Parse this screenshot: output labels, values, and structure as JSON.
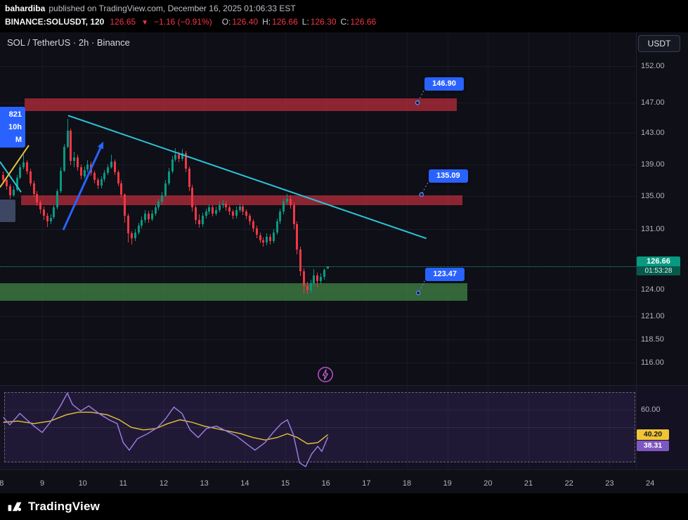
{
  "colors": {
    "up": "#089981",
    "down": "#f23645",
    "cyan": "#2bc4d9",
    "yellow": "#e5c33a",
    "blue": "#2962ff",
    "purple": "#9f7fe8",
    "resistance": "rgba(201,48,62,0.68)",
    "support": "rgba(76,160,80,0.60)",
    "label_blue": "#2962ff",
    "current": "#089981"
  },
  "header": {
    "author": "bahardiba",
    "published": "published on TradingView.com, December 16, 2025 01:06:33 EST",
    "symbol": "BINANCE:SOLUSDT, 120",
    "last_price": "126.65",
    "direction": "▼",
    "change": "−1.16 (−0.91%)",
    "ohlc": [
      {
        "label": "O:",
        "value": "126.40"
      },
      {
        "label": "H:",
        "value": "126.66"
      },
      {
        "label": "L:",
        "value": "126.30"
      },
      {
        "label": "C:",
        "value": "126.66"
      }
    ]
  },
  "chart": {
    "title": "SOL / TetherUS · 2h · Binance",
    "currency_button": "USDT",
    "left_label_lines": [
      "821",
      "10h",
      "M"
    ],
    "y_ticks": [
      {
        "value": 152,
        "label": "152.00"
      },
      {
        "value": 147,
        "label": "147.00"
      },
      {
        "value": 143,
        "label": "143.00"
      },
      {
        "value": 139,
        "label": "139.00"
      },
      {
        "value": 135,
        "label": "135.00"
      },
      {
        "value": 131,
        "label": "131.00"
      },
      {
        "value": 124,
        "label": "124.00"
      },
      {
        "value": 121,
        "label": "121.00"
      },
      {
        "value": 118.5,
        "label": "118.50"
      },
      {
        "value": 116,
        "label": "116.00"
      }
    ],
    "x_ticks": [
      8,
      9,
      10,
      11,
      12,
      13,
      14,
      15,
      16,
      17,
      18,
      19,
      20,
      21,
      22,
      23,
      24
    ],
    "current_price": {
      "price": "126.66",
      "countdown": "01:53:28"
    }
  },
  "indicator": {
    "gridline_label": "60.00",
    "yellow_value": "40.20",
    "purple_value": "38.31"
  },
  "footer": {
    "brand": "TradingView"
  },
  "chart_data": {
    "type": "candlestick",
    "interval": "2h",
    "x_unit": "day of December 2025",
    "visible_day_range": [
      8,
      24
    ],
    "y_scale": "log",
    "y_ticks": [
      152,
      147,
      143,
      139,
      135,
      131,
      124,
      121,
      118.5,
      116
    ],
    "current_price": 126.66,
    "current_bar": {
      "open": 126.4,
      "high": 126.66,
      "low": 126.3,
      "close": 126.66
    },
    "candles": [
      [
        137.6,
        138.1,
        136.6,
        137.0
      ],
      [
        137.0,
        137.4,
        135.8,
        136.2
      ],
      [
        136.2,
        136.5,
        134.7,
        135.1
      ],
      [
        135.1,
        136.2,
        134.9,
        135.8
      ],
      [
        135.8,
        137.6,
        135.6,
        137.3
      ],
      [
        137.3,
        139.0,
        137.1,
        138.6
      ],
      [
        138.6,
        140.2,
        138.3,
        139.2
      ],
      [
        139.2,
        139.5,
        137.7,
        138.1
      ],
      [
        138.1,
        138.4,
        136.2,
        136.6
      ],
      [
        136.6,
        136.9,
        134.9,
        135.3
      ],
      [
        135.3,
        135.6,
        133.8,
        134.2
      ],
      [
        134.2,
        134.5,
        132.9,
        133.4
      ],
      [
        133.4,
        133.7,
        132.1,
        132.6
      ],
      [
        132.6,
        133.0,
        131.3,
        131.9
      ],
      [
        131.9,
        132.8,
        131.6,
        132.4
      ],
      [
        132.4,
        133.9,
        132.2,
        133.6
      ],
      [
        133.6,
        135.9,
        133.4,
        135.6
      ],
      [
        135.6,
        138.6,
        135.4,
        138.2
      ],
      [
        138.2,
        141.6,
        138.0,
        141.2
      ],
      [
        141.2,
        144.9,
        141.0,
        143.3
      ],
      [
        143.3,
        143.6,
        138.9,
        139.4
      ],
      [
        139.4,
        140.6,
        138.6,
        139.9
      ],
      [
        139.9,
        140.2,
        138.2,
        138.6
      ],
      [
        138.6,
        139.0,
        137.1,
        137.5
      ],
      [
        137.5,
        138.7,
        137.2,
        138.3
      ],
      [
        138.3,
        139.5,
        138.0,
        139.0
      ],
      [
        139.0,
        139.3,
        137.5,
        137.9
      ],
      [
        137.9,
        138.2,
        136.6,
        137.0
      ],
      [
        137.0,
        137.3,
        135.9,
        136.3
      ],
      [
        136.3,
        137.5,
        136.0,
        137.1
      ],
      [
        137.1,
        138.3,
        136.8,
        137.9
      ],
      [
        137.9,
        139.0,
        137.6,
        138.6
      ],
      [
        138.6,
        140.2,
        138.4,
        139.3
      ],
      [
        139.3,
        139.6,
        137.6,
        138.0
      ],
      [
        138.0,
        138.3,
        136.2,
        136.6
      ],
      [
        136.6,
        136.9,
        134.8,
        135.2
      ],
      [
        135.2,
        135.4,
        131.8,
        132.6
      ],
      [
        132.6,
        132.9,
        129.4,
        130.5
      ],
      [
        130.5,
        130.8,
        129.2,
        129.9
      ],
      [
        129.9,
        131.0,
        129.6,
        130.6
      ],
      [
        130.6,
        131.8,
        130.3,
        131.4
      ],
      [
        131.4,
        132.5,
        131.1,
        132.1
      ],
      [
        132.1,
        133.3,
        131.8,
        132.9
      ],
      [
        132.9,
        133.2,
        131.8,
        132.2
      ],
      [
        132.2,
        133.3,
        131.9,
        132.9
      ],
      [
        132.9,
        134.0,
        132.6,
        133.6
      ],
      [
        133.6,
        134.7,
        133.3,
        134.3
      ],
      [
        134.3,
        135.5,
        134.0,
        135.1
      ],
      [
        135.1,
        137.0,
        134.9,
        136.6
      ],
      [
        136.6,
        138.5,
        136.3,
        138.1
      ],
      [
        138.1,
        140.0,
        137.8,
        139.6
      ],
      [
        139.6,
        141.0,
        139.3,
        140.2
      ],
      [
        140.2,
        140.6,
        139.2,
        139.7
      ],
      [
        139.7,
        140.9,
        139.4,
        140.4
      ],
      [
        140.4,
        140.7,
        138.0,
        138.4
      ],
      [
        138.4,
        138.7,
        135.6,
        136.1
      ],
      [
        136.1,
        136.4,
        133.1,
        133.6
      ],
      [
        133.6,
        133.9,
        131.6,
        132.1
      ],
      [
        132.1,
        132.8,
        131.2,
        131.6
      ],
      [
        131.6,
        133.0,
        131.3,
        132.6
      ],
      [
        132.6,
        133.5,
        132.3,
        133.1
      ],
      [
        133.1,
        134.0,
        132.8,
        133.6
      ],
      [
        133.6,
        133.9,
        132.5,
        132.9
      ],
      [
        132.9,
        133.7,
        132.6,
        133.3
      ],
      [
        133.3,
        134.3,
        133.0,
        133.9
      ],
      [
        133.9,
        134.5,
        133.6,
        134.1
      ],
      [
        134.1,
        134.4,
        133.2,
        133.6
      ],
      [
        133.6,
        133.9,
        132.7,
        133.1
      ],
      [
        133.1,
        133.4,
        132.2,
        132.6
      ],
      [
        132.6,
        133.7,
        132.3,
        133.3
      ],
      [
        133.3,
        134.1,
        133.0,
        133.7
      ],
      [
        133.7,
        134.0,
        132.7,
        133.1
      ],
      [
        133.1,
        133.4,
        132.2,
        132.6
      ],
      [
        132.6,
        132.9,
        131.5,
        131.9
      ],
      [
        131.9,
        132.2,
        130.7,
        131.1
      ],
      [
        131.1,
        131.4,
        129.9,
        130.3
      ],
      [
        130.3,
        130.6,
        129.3,
        129.7
      ],
      [
        129.7,
        130.0,
        128.9,
        129.4
      ],
      [
        129.4,
        130.5,
        129.1,
        130.1
      ],
      [
        130.1,
        130.4,
        129.2,
        129.6
      ],
      [
        129.6,
        131.0,
        129.3,
        130.6
      ],
      [
        130.6,
        132.3,
        130.3,
        131.9
      ],
      [
        131.9,
        133.5,
        131.6,
        133.1
      ],
      [
        133.1,
        134.7,
        132.8,
        134.3
      ],
      [
        134.3,
        135.3,
        134.0,
        134.7
      ],
      [
        134.7,
        135.1,
        133.5,
        133.9
      ],
      [
        133.9,
        134.2,
        131.0,
        131.6
      ],
      [
        131.6,
        131.9,
        128.0,
        128.6
      ],
      [
        128.6,
        128.9,
        125.5,
        126.1
      ],
      [
        126.1,
        126.4,
        123.5,
        124.4
      ],
      [
        124.4,
        124.9,
        123.4,
        123.9
      ],
      [
        123.9,
        125.1,
        123.6,
        124.7
      ],
      [
        124.7,
        126.3,
        124.4,
        125.6
      ],
      [
        125.6,
        125.9,
        124.2,
        124.9
      ],
      [
        124.9,
        125.8,
        124.6,
        125.4
      ],
      [
        125.4,
        126.4,
        125.1,
        126.2
      ],
      [
        126.4,
        126.66,
        126.3,
        126.66
      ]
    ],
    "zones": [
      {
        "kind": "resistance",
        "day_from": 8.57,
        "day_to": 19.23,
        "price_from": 145.9,
        "price_to": 147.6
      },
      {
        "kind": "resistance",
        "day_from": 8.48,
        "day_to": 19.37,
        "price_from": 133.9,
        "price_to": 135.1
      },
      {
        "kind": "support",
        "day_from": 7.96,
        "day_to": 19.49,
        "price_from": 122.7,
        "price_to": 124.7
      }
    ],
    "price_markers": [
      {
        "label": "146.90",
        "day": 18.26,
        "price": 147.0
      },
      {
        "label": "135.09",
        "day": 18.36,
        "price": 135.2
      },
      {
        "label": "123.47",
        "day": 18.28,
        "price": 123.6
      }
    ],
    "trend_lines": [
      {
        "from": [
          9.64,
          145.3
        ],
        "to": [
          18.48,
          129.9
        ],
        "color": "cyan",
        "width": 2
      },
      {
        "from": [
          7.96,
          139.3
        ],
        "to": [
          8.48,
          135.5
        ],
        "color": "cyan",
        "width": 2
      },
      {
        "from": [
          7.96,
          136.1
        ],
        "to": [
          8.67,
          141.4
        ],
        "color": "yellow",
        "width": 2
      }
    ],
    "arrow": {
      "from": [
        9.52,
        130.9
      ],
      "to": [
        10.51,
        141.9
      ],
      "color": "blue",
      "width": 3
    },
    "indicator": {
      "type": "oscillator",
      "upper_band": 74,
      "lower_band": 18,
      "mid": 46,
      "grid": 60,
      "purple_last": 38.31,
      "yellow_last": 40.2,
      "purple_series": [
        [
          8.04,
          54
        ],
        [
          8.2,
          48
        ],
        [
          8.45,
          57
        ],
        [
          8.62,
          52
        ],
        [
          8.8,
          47
        ],
        [
          9.0,
          42
        ],
        [
          9.2,
          50
        ],
        [
          9.45,
          63
        ],
        [
          9.62,
          73
        ],
        [
          9.75,
          64
        ],
        [
          9.95,
          59
        ],
        [
          10.15,
          63
        ],
        [
          10.4,
          57
        ],
        [
          10.65,
          52
        ],
        [
          10.85,
          49
        ],
        [
          11.0,
          34
        ],
        [
          11.15,
          28
        ],
        [
          11.35,
          37
        ],
        [
          11.6,
          41
        ],
        [
          11.85,
          46
        ],
        [
          12.05,
          53
        ],
        [
          12.25,
          62
        ],
        [
          12.45,
          57
        ],
        [
          12.65,
          44
        ],
        [
          12.85,
          38
        ],
        [
          13.05,
          45
        ],
        [
          13.3,
          47
        ],
        [
          13.55,
          43
        ],
        [
          13.8,
          39
        ],
        [
          14.0,
          34
        ],
        [
          14.25,
          28
        ],
        [
          14.5,
          34
        ],
        [
          14.7,
          42
        ],
        [
          14.9,
          49
        ],
        [
          15.05,
          52
        ],
        [
          15.2,
          40
        ],
        [
          15.35,
          18
        ],
        [
          15.5,
          15
        ],
        [
          15.65,
          25
        ],
        [
          15.8,
          31
        ],
        [
          15.9,
          27
        ],
        [
          16.05,
          38.31
        ]
      ],
      "yellow_series": [
        [
          8.04,
          50
        ],
        [
          8.4,
          51
        ],
        [
          8.8,
          49
        ],
        [
          9.2,
          51
        ],
        [
          9.6,
          56
        ],
        [
          9.9,
          58
        ],
        [
          10.2,
          58
        ],
        [
          10.6,
          56
        ],
        [
          10.9,
          52
        ],
        [
          11.2,
          46
        ],
        [
          11.5,
          44
        ],
        [
          11.8,
          45
        ],
        [
          12.1,
          49
        ],
        [
          12.4,
          52
        ],
        [
          12.7,
          50
        ],
        [
          13.0,
          47
        ],
        [
          13.3,
          45
        ],
        [
          13.6,
          43
        ],
        [
          13.9,
          41
        ],
        [
          14.2,
          38
        ],
        [
          14.5,
          36
        ],
        [
          14.8,
          38
        ],
        [
          15.05,
          41
        ],
        [
          15.3,
          38
        ],
        [
          15.55,
          33
        ],
        [
          15.8,
          34
        ],
        [
          16.05,
          40.2
        ]
      ]
    }
  }
}
